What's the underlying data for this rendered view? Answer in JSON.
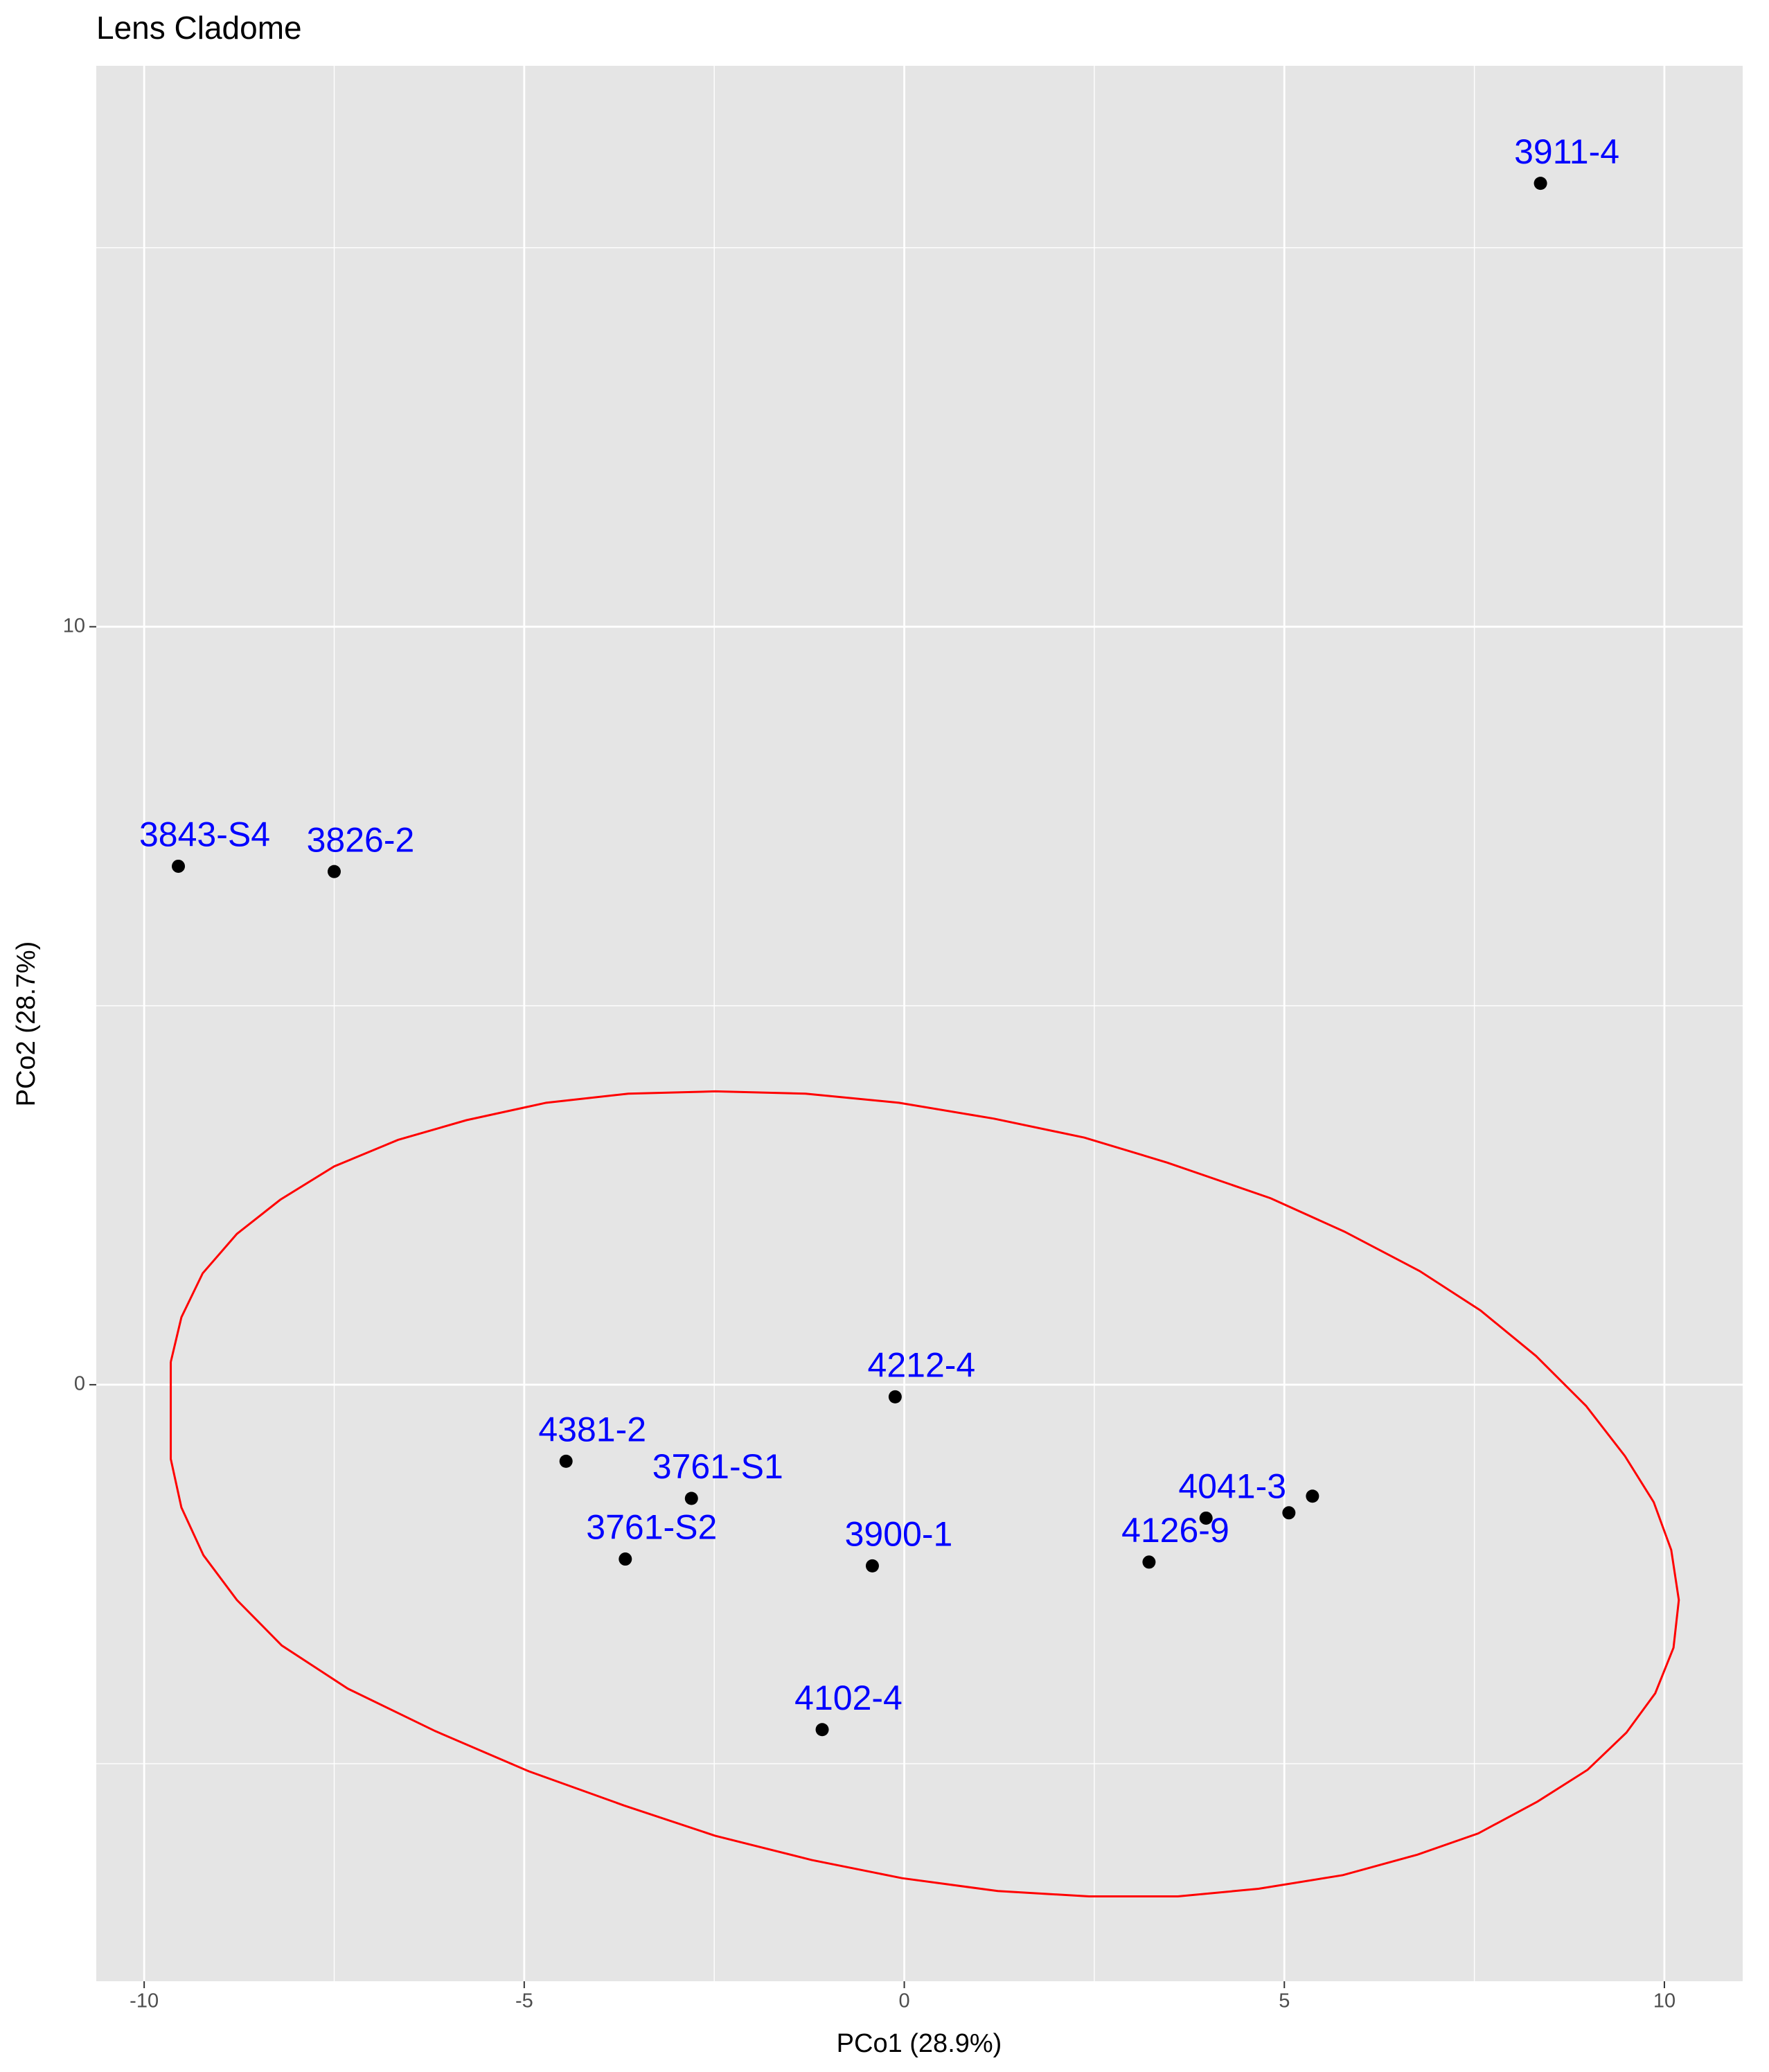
{
  "chart_data": {
    "type": "scatter",
    "title": "Lens Cladome",
    "x_label": "PCo1 (28.9%)",
    "y_label": "PCo2 (28.7%)",
    "xlim": [
      -10.63,
      11.03
    ],
    "ylim": [
      -7.87,
      17.4
    ],
    "xticks": [
      -10,
      -5,
      0,
      5,
      10
    ],
    "yticks": [
      0,
      10
    ],
    "x_minor_grid": [
      -7.5,
      -2.5,
      2.5,
      7.5
    ],
    "y_minor_grid": [
      -5,
      5,
      15
    ],
    "grid": true,
    "point_color": "#000000",
    "label_color": "#0000ff",
    "x": [
      8.37,
      -9.55,
      -7.5,
      -0.12,
      -4.45,
      -2.8,
      -3.67,
      -0.42,
      3.97,
      3.22,
      -1.08,
      5.06,
      5.37
    ],
    "y": [
      15.85,
      6.84,
      6.77,
      -0.16,
      -1.01,
      -1.5,
      -2.3,
      -2.39,
      -1.76,
      -2.34,
      -4.55,
      -1.69,
      -1.47
    ],
    "labels": [
      "3911-4",
      "3843-S4",
      "3826-2",
      "4212-4",
      "4381-2",
      "3761-S1",
      "3761-S2",
      "3900-1",
      "4041-3",
      "4126-9",
      "4102-4",
      null,
      null
    ],
    "ellipse": {
      "color": "#ff0000",
      "x": [
        -9.65,
        -9.51,
        -9.23,
        -8.78,
        -8.21,
        -7.5,
        -6.66,
        -5.76,
        -4.71,
        -3.63,
        -2.49,
        -1.3,
        -0.07,
        1.18,
        2.37,
        3.46,
        4.82,
        5.79,
        6.78,
        7.58,
        8.31,
        8.97,
        9.48,
        9.86,
        10.09,
        10.19,
        10.12,
        9.88,
        9.5,
        8.99,
        8.33,
        7.55,
        6.75,
        5.77,
        4.66,
        3.6,
        2.43,
        1.23,
        -0.03,
        -1.22,
        -2.49,
        -3.69,
        -4.94,
        -6.17,
        -7.32,
        -8.19,
        -8.78,
        -9.22,
        -9.51,
        -9.65,
        -9.65,
        -9.65
      ],
      "y": [
        0.3,
        0.89,
        1.47,
        1.99,
        2.44,
        2.88,
        3.23,
        3.49,
        3.72,
        3.84,
        3.87,
        3.84,
        3.72,
        3.51,
        3.26,
        2.93,
        2.46,
        2.02,
        1.5,
        0.98,
        0.38,
        -0.28,
        -0.94,
        -1.55,
        -2.18,
        -2.84,
        -3.47,
        -4.07,
        -4.59,
        -5.08,
        -5.5,
        -5.92,
        -6.2,
        -6.47,
        -6.65,
        -6.75,
        -6.75,
        -6.68,
        -6.51,
        -6.27,
        -5.95,
        -5.55,
        -5.1,
        -4.57,
        -4.01,
        -3.44,
        -2.84,
        -2.25,
        -1.62,
        -0.98,
        -0.35,
        0.3
      ]
    }
  }
}
